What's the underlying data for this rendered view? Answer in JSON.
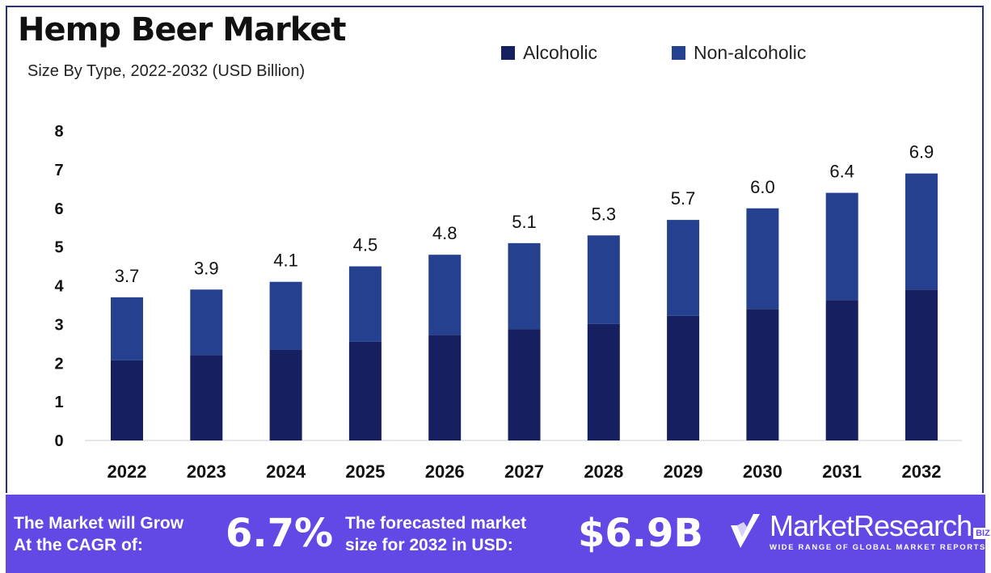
{
  "title": "Hemp Beer Market",
  "subtitle": "Size By Type, 2022-2032 (USD Billion)",
  "chart_data": {
    "type": "bar",
    "stacked": true,
    "title": "Hemp Beer Market",
    "subtitle": "Size By Type, 2022-2032 (USD Billion)",
    "categories": [
      "2022",
      "2023",
      "2024",
      "2025",
      "2026",
      "2027",
      "2028",
      "2029",
      "2030",
      "2031",
      "2032"
    ],
    "series": [
      {
        "name": "Alcoholic",
        "color": "#161f5f",
        "values": [
          2.07,
          2.21,
          2.34,
          2.55,
          2.73,
          2.88,
          3.01,
          3.22,
          3.4,
          3.63,
          3.9
        ]
      },
      {
        "name": "Non-alcoholic",
        "color": "#24408e",
        "values": [
          1.63,
          1.69,
          1.76,
          1.95,
          2.07,
          2.22,
          2.29,
          2.48,
          2.6,
          2.77,
          3.0
        ]
      }
    ],
    "totals": [
      "3.7",
      "3.9",
      "4.1",
      "4.5",
      "4.8",
      "5.1",
      "5.3",
      "5.7",
      "6.0",
      "6.4",
      "6.9"
    ],
    "yticks": [
      "0",
      "1",
      "2",
      "3",
      "4",
      "5",
      "6",
      "7",
      "8"
    ],
    "ylim": [
      0,
      8
    ],
    "legend": "top-right",
    "grid": false
  },
  "footer": {
    "cagr_label_1": "The Market will Grow",
    "cagr_label_2": "At the CAGR of:",
    "cagr_value": "6.7%",
    "forecast_label_1": "The forecasted market",
    "forecast_label_2": "size for 2032 in USD:",
    "forecast_value": "$6.9B",
    "logo_name": "MarketResearch",
    "logo_biz": "BIZ",
    "logo_tagline": "WIDE RANGE OF GLOBAL MARKET REPORTS"
  }
}
